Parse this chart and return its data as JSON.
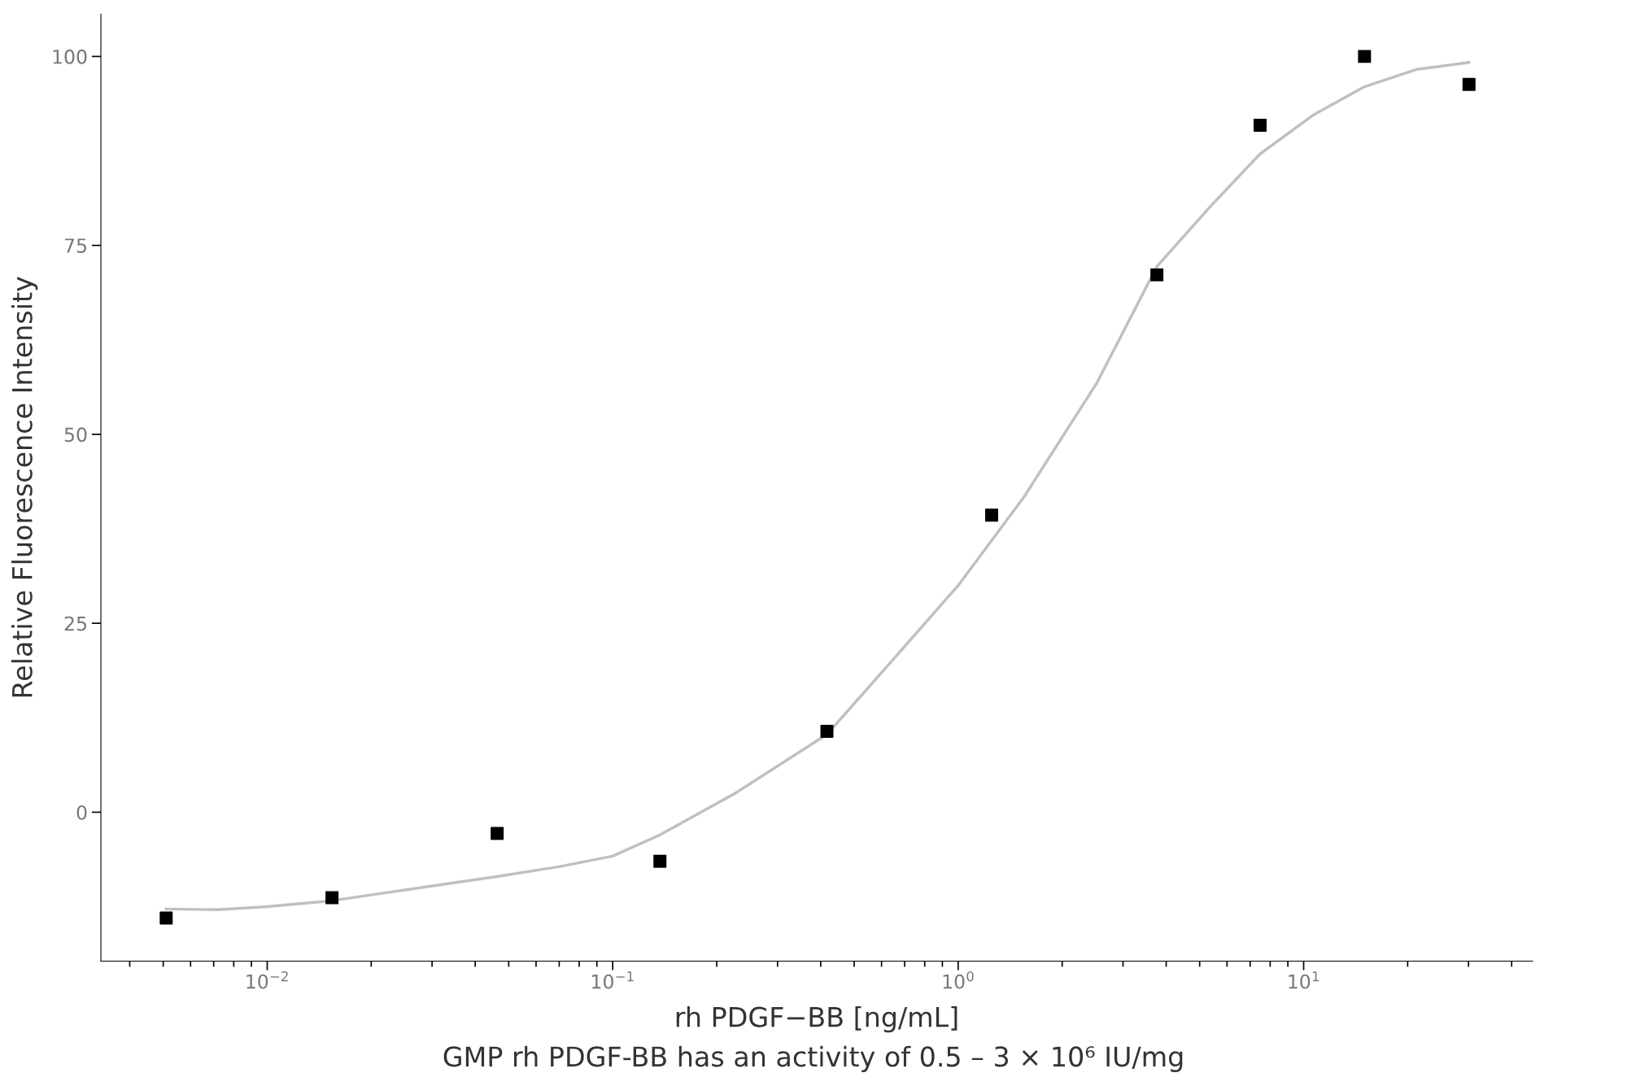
{
  "chart_data": {
    "type": "scatter",
    "xlabel": "rh PDGF−BB [ng/mL]",
    "ylabel": "Relative Fluorescence Intensity",
    "annotations": [
      "GMP rh PDGF-BB has an activity of 0.5 – 3 × 10⁶ IU/mg"
    ],
    "log": "x",
    "grid": false,
    "xlim": [
      0.0033,
      46
    ],
    "ylim": [
      -19.7,
      105.6
    ],
    "xticks": [
      {
        "value": 0.01,
        "label": "10$^{−2}$"
      },
      {
        "value": 0.1,
        "label": "10$^{−1}$"
      },
      {
        "value": 1,
        "label": "10$^{0}$"
      },
      {
        "value": 10,
        "label": "10$^{1}$"
      }
    ],
    "yticks": [
      0,
      25,
      50,
      75,
      100
    ],
    "series": [
      {
        "type": "line",
        "color": "#c0c0c0",
        "marker": "none",
        "line_style": "solid",
        "x": [
          0.0051,
          0.0072,
          0.01,
          0.0154,
          0.0285,
          0.0463,
          0.07,
          0.1,
          0.137,
          0.226,
          0.417,
          0.634,
          1.0,
          1.55,
          2.52,
          3.76,
          5.38,
          7.48,
          10.7,
          15.0,
          21.3,
          30.1
        ],
        "values": [
          -12.8,
          -12.9,
          -12.5,
          -11.7,
          -9.9,
          -8.5,
          -7.2,
          -5.8,
          -3.0,
          2.5,
          10.3,
          19.7,
          30,
          41.7,
          56.8,
          72.2,
          80.2,
          87.1,
          92.3,
          96,
          98.3,
          99.2
        ]
      },
      {
        "color": "#000000",
        "marker": "square",
        "x": [
          0.0051,
          0.0154,
          0.0463,
          0.137,
          0.417,
          1.25,
          3.76,
          7.48,
          15.0,
          30.1
        ],
        "values": [
          -14.0,
          -11.3,
          -2.8,
          -6.5,
          10.7,
          39.3,
          71.1,
          90.9,
          100,
          96.3
        ]
      }
    ]
  }
}
